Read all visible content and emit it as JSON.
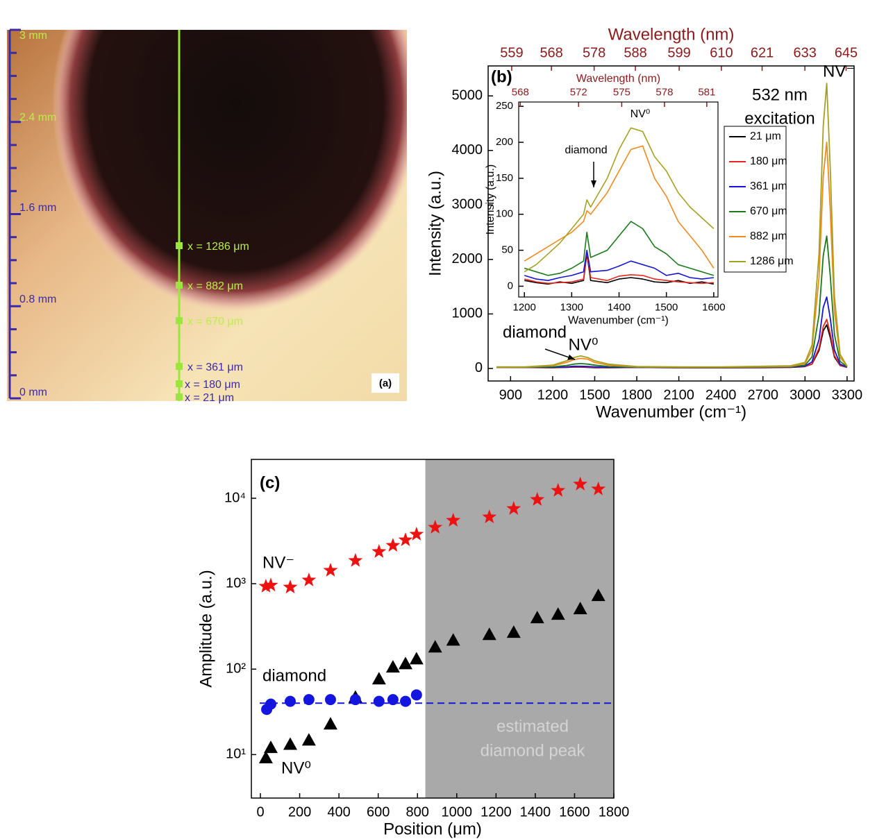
{
  "photo": {
    "panel_label": "(a)",
    "scale_labels": [
      "3 mm",
      "2.4 mm",
      "1.6 mm",
      "0.8 mm",
      "0 mm"
    ],
    "position_labels": [
      "x = 1286 μm",
      "x = 882 μm",
      "x = 670 μm",
      "x = 361 μm",
      "x = 180 μm",
      "x = 21 μm"
    ]
  },
  "chart_data": [
    {
      "type": "line",
      "panel_label": "(b)",
      "xlabel": "Wavenumber (cm⁻¹)",
      "ylabel": "Intensity (a.u.)",
      "x2label": "Wavelength (nm)",
      "x2_color": "#8b1a1a",
      "excitation_nm": 532,
      "xlim": [
        740,
        3350
      ],
      "xticks": [
        900,
        1200,
        1500,
        1800,
        2100,
        2400,
        2700,
        3000,
        3300
      ],
      "ylim": [
        -230,
        5550
      ],
      "yticks": [
        0,
        1000,
        2000,
        3000,
        4000,
        5000
      ],
      "x2ticks": [
        559,
        568,
        578,
        588,
        599,
        610,
        621,
        633,
        645
      ],
      "peak_label": "NV⁻",
      "excitation_lines": [
        "532 nm",
        "excitation"
      ],
      "diamond_label": "diamond",
      "nv0_label": "NV⁰",
      "x": [
        800,
        1000,
        1200,
        1300,
        1350,
        1400,
        1450,
        1500,
        1600,
        1800,
        2100,
        2400,
        2700,
        2900,
        3000,
        3050,
        3100,
        3130,
        3155,
        3180,
        3210,
        3250,
        3300
      ],
      "series": [
        {
          "name": "21 μm",
          "color": "#000000",
          "values": [
            20,
            18,
            15,
            20,
            25,
            25,
            20,
            15,
            15,
            18,
            15,
            12,
            15,
            20,
            35,
            80,
            330,
            690,
            800,
            570,
            210,
            55,
            20
          ]
        },
        {
          "name": "180 μm",
          "color": "#e8251f",
          "values": [
            22,
            20,
            15,
            25,
            30,
            30,
            25,
            20,
            15,
            18,
            15,
            15,
            18,
            22,
            38,
            85,
            370,
            770,
            900,
            640,
            235,
            60,
            20
          ]
        },
        {
          "name": "361 μm",
          "color": "#1414d2",
          "values": [
            25,
            22,
            20,
            30,
            40,
            40,
            35,
            30,
            20,
            20,
            18,
            18,
            20,
            25,
            45,
            120,
            530,
            1120,
            1310,
            920,
            340,
            80,
            25
          ]
        },
        {
          "name": "670 μm",
          "color": "#1a7a1a",
          "values": [
            22,
            22,
            30,
            55,
            80,
            90,
            80,
            60,
            35,
            25,
            20,
            20,
            25,
            30,
            60,
            210,
            980,
            2070,
            2430,
            1700,
            620,
            130,
            30
          ]
        },
        {
          "name": "882 μm",
          "color": "#f08a1c",
          "values": [
            25,
            25,
            50,
            110,
            160,
            185,
            170,
            110,
            60,
            30,
            25,
            25,
            30,
            40,
            90,
            340,
            1670,
            3530,
            4150,
            2910,
            1050,
            210,
            40
          ]
        },
        {
          "name": "1286 μm",
          "color": "#a4a020",
          "values": [
            28,
            28,
            60,
            140,
            200,
            230,
            200,
            140,
            80,
            35,
            30,
            30,
            40,
            50,
            110,
            430,
            2100,
            4450,
            5230,
            3670,
            1320,
            260,
            45
          ]
        }
      ]
    },
    {
      "type": "line",
      "xlabel": "Wavenumber (cm⁻¹)",
      "ylabel": "Intensity (a.u.)",
      "x2label": "Wavelength (nm)",
      "x2_color": "#8b1a1a",
      "excitation_nm": 532,
      "xlim": [
        1188,
        1609
      ],
      "xticks": [
        1200,
        1300,
        1400,
        1500,
        1600
      ],
      "ylim": [
        -15,
        256
      ],
      "yticks": [
        0,
        50,
        100,
        150,
        200,
        250
      ],
      "x2ticks": [
        568,
        572,
        575,
        578,
        581
      ],
      "diamond_label": "diamond",
      "nv0_label": "NV⁰",
      "x": [
        1200,
        1225,
        1250,
        1275,
        1300,
        1325,
        1332,
        1340,
        1375,
        1400,
        1425,
        1450,
        1475,
        1500,
        1525,
        1550,
        1575,
        1600
      ],
      "series": [
        {
          "color": "#000000",
          "values": [
            8,
            5,
            3,
            6,
            4,
            8,
            45,
            8,
            5,
            10,
            12,
            10,
            6,
            5,
            8,
            4,
            6,
            3
          ]
        },
        {
          "color": "#e8251f",
          "values": [
            10,
            6,
            4,
            5,
            6,
            10,
            48,
            12,
            8,
            14,
            16,
            15,
            10,
            8,
            6,
            5,
            4,
            5
          ]
        },
        {
          "color": "#1414d2",
          "values": [
            15,
            10,
            8,
            12,
            15,
            20,
            50,
            20,
            22,
            28,
            35,
            30,
            25,
            15,
            18,
            12,
            10,
            12
          ]
        },
        {
          "color": "#1a7a1a",
          "values": [
            25,
            20,
            15,
            18,
            25,
            35,
            75,
            40,
            50,
            70,
            90,
            80,
            55,
            45,
            30,
            25,
            20,
            15
          ]
        },
        {
          "color": "#f08a1c",
          "values": [
            35,
            45,
            55,
            65,
            75,
            90,
            105,
            100,
            130,
            160,
            190,
            195,
            150,
            125,
            90,
            70,
            50,
            25
          ]
        },
        {
          "color": "#a4a020",
          "values": [
            20,
            30,
            45,
            60,
            80,
            100,
            120,
            110,
            150,
            190,
            220,
            215,
            180,
            160,
            130,
            110,
            95,
            80
          ]
        }
      ]
    },
    {
      "type": "scatter",
      "panel_label": "(c)",
      "xlabel": "Position (μm)",
      "ylabel": "Amplitude (a.u.)",
      "log_y": true,
      "xlim": [
        -46,
        1800
      ],
      "xticks": [
        0,
        200,
        400,
        600,
        800,
        1000,
        1200,
        1400,
        1600,
        1800
      ],
      "ylim": [
        3.1,
        28500
      ],
      "yticks": [
        {
          "value": 10,
          "label": "10¹"
        },
        {
          "value": 100,
          "label": "10²"
        },
        {
          "value": 1000,
          "label": "10³"
        },
        {
          "value": 10000,
          "label": "10⁴"
        }
      ],
      "reference_line": {
        "value": 40,
        "color": "#1515e0"
      },
      "shaded_region": {
        "from": 840,
        "color": "#a9a9a9",
        "label_lines": [
          "estimated",
          "diamond peak"
        ]
      },
      "series": [
        {
          "name": "NV⁻",
          "marker": "star",
          "color": "#ee1111",
          "x": [
            28,
            53,
            152,
            247,
            357,
            484,
            604,
            675,
            739,
            795,
            890,
            982,
            1166,
            1290,
            1410,
            1516,
            1629,
            1721
          ],
          "values": [
            930,
            960,
            910,
            1100,
            1430,
            1860,
            2370,
            2800,
            3250,
            3780,
            4560,
            5500,
            6030,
            7550,
            9640,
            12300,
            14600,
            12800
          ]
        },
        {
          "name": "diamond",
          "marker": "circle",
          "color": "#1515e0",
          "x": [
            32,
            53,
            152,
            247,
            357,
            484,
            604,
            675,
            739,
            795
          ],
          "values": [
            33.8,
            39,
            42,
            44,
            44,
            44,
            42,
            44,
            42,
            50
          ]
        },
        {
          "name": "NV⁰",
          "marker": "triangle",
          "color": "#000000",
          "x": [
            28,
            53,
            152,
            247,
            357,
            484,
            604,
            675,
            739,
            795,
            890,
            982,
            1166,
            1290,
            1410,
            1516,
            1629,
            1721
          ],
          "values": [
            9.2,
            12.1,
            13.2,
            14.8,
            22.8,
            47,
            77,
            106,
            116,
            132,
            182,
            219,
            255,
            270,
            400,
            439,
            510,
            728
          ]
        }
      ]
    }
  ]
}
